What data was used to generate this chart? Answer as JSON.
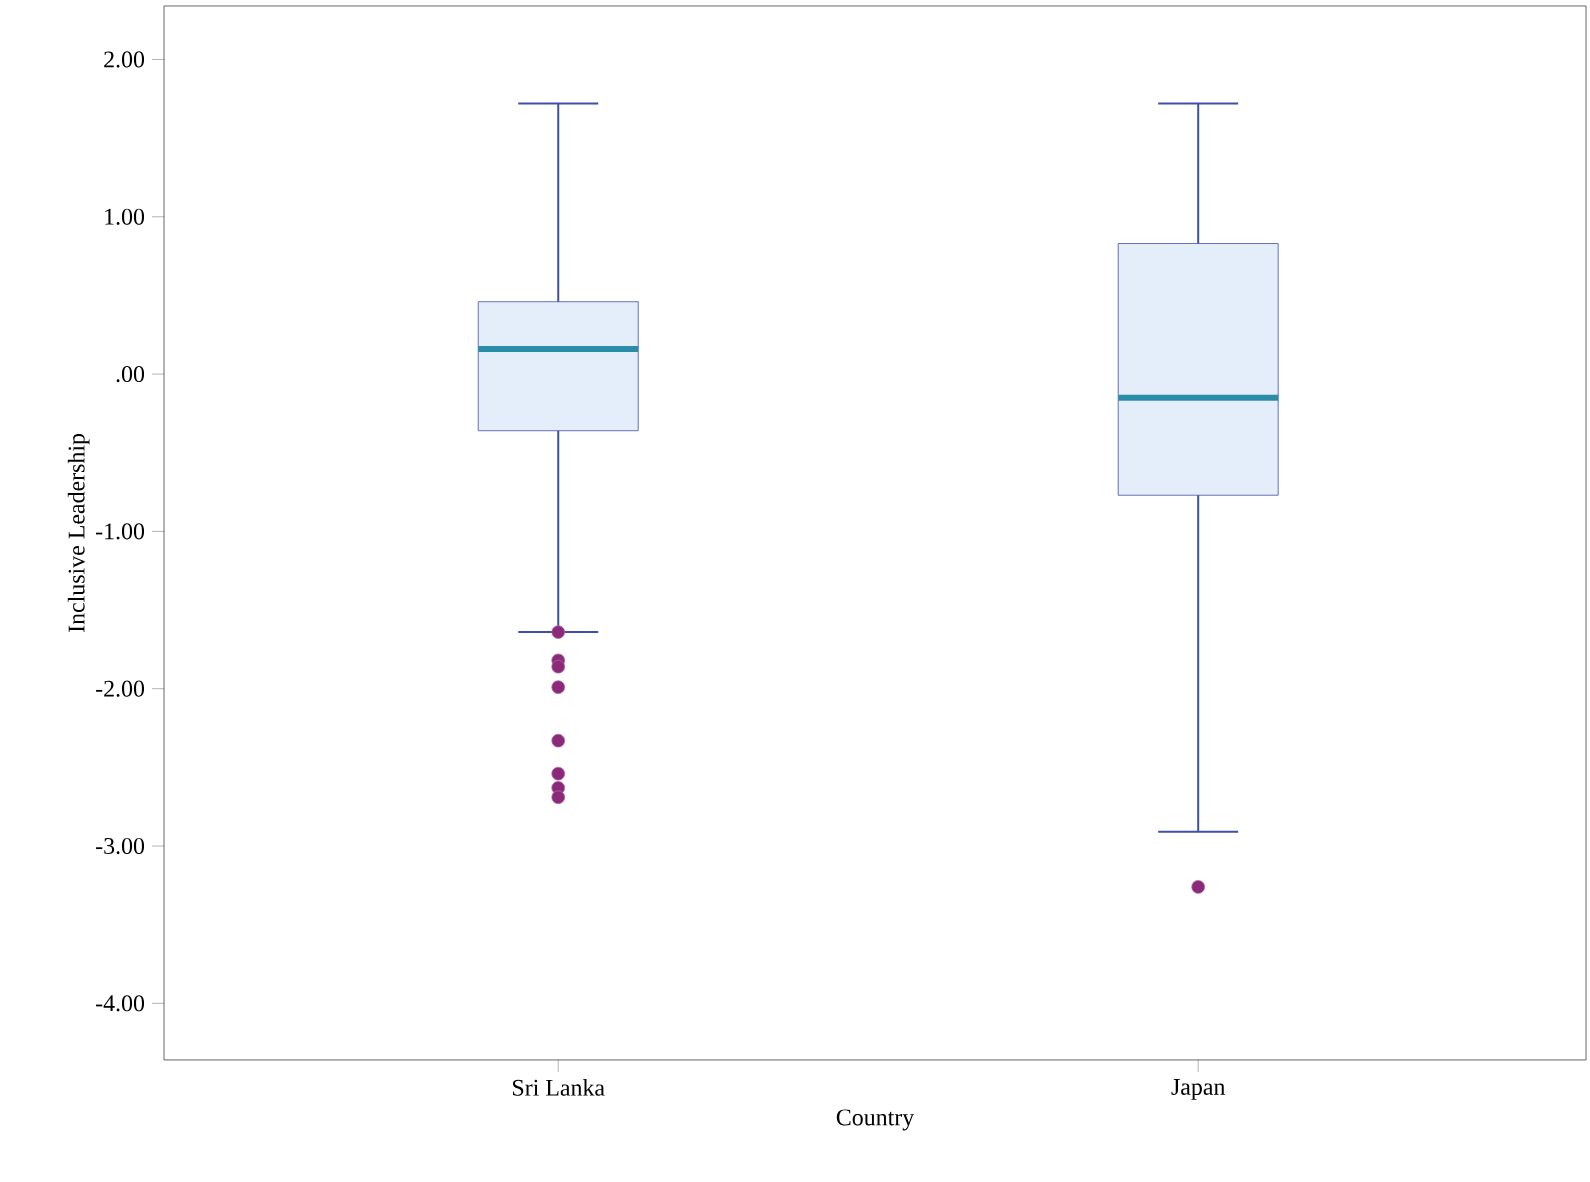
{
  "chart_data": {
    "type": "box",
    "xlabel": "Country",
    "ylabel": "Inclusive Leadership",
    "categories": [
      "Sri Lanka",
      "Japan"
    ],
    "boxes": [
      {
        "low": -1.64,
        "q1": -0.36,
        "median": 0.16,
        "q3": 0.46,
        "high": 1.72,
        "outliers": [
          -1.64,
          -1.82,
          -1.86,
          -1.99,
          -2.33,
          -2.54,
          -2.63,
          -2.69
        ]
      },
      {
        "low": -2.91,
        "q1": -0.77,
        "median": -0.15,
        "q3": 0.83,
        "high": 1.72,
        "outliers": [
          -3.26
        ]
      }
    ],
    "color": "#e4eefa",
    "ylim": [
      -4.36,
      2.34
    ],
    "yticks": [
      {
        "value": -4,
        "label": "-4.00"
      },
      {
        "value": -3,
        "label": "-3.00"
      },
      {
        "value": -2,
        "label": "-2.00"
      },
      {
        "value": -1,
        "label": "-1.00"
      },
      {
        "value": 0,
        "label": ".00"
      },
      {
        "value": 1,
        "label": "1.00"
      },
      {
        "value": 2,
        "label": "2.00"
      }
    ]
  }
}
